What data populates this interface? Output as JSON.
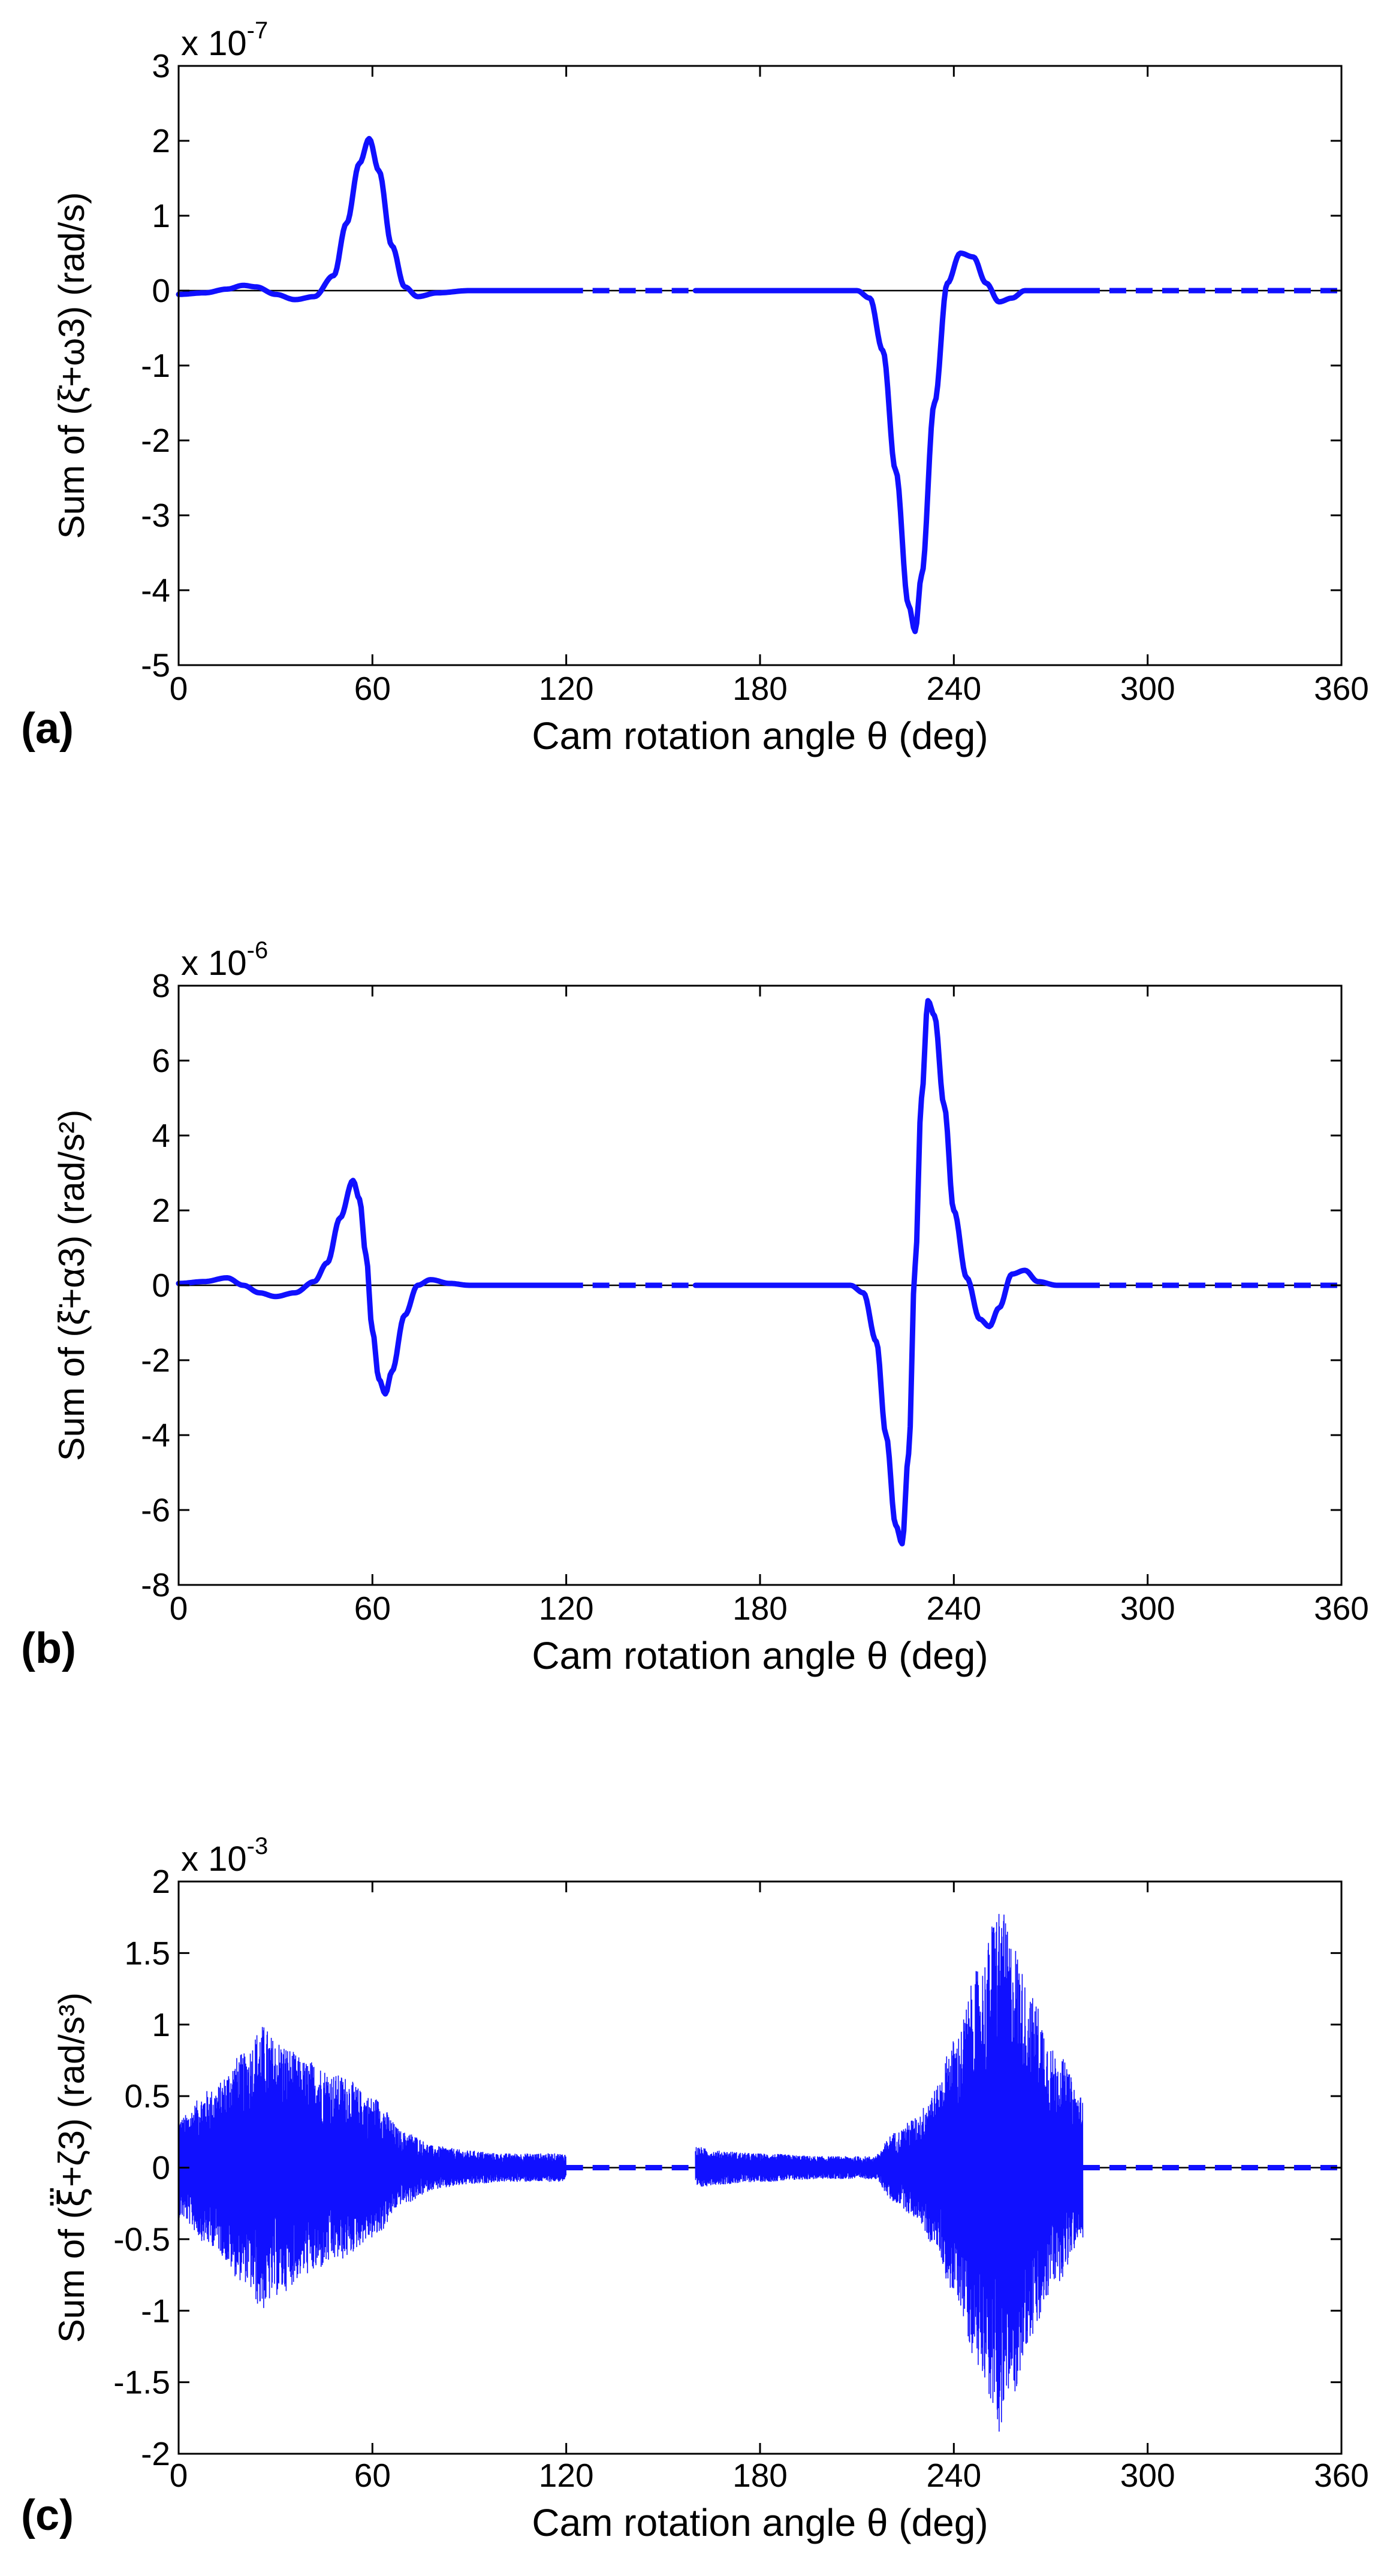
{
  "chart_data": [
    {
      "panel": "(a)",
      "type": "line",
      "xlabel": "Cam rotation angle θ (deg)",
      "ylabel": "Sum of (ξ̇+ω3) (rad/s)",
      "exponent_label": "x 10",
      "exponent_power": "-7",
      "xlim": [
        0,
        360
      ],
      "ylim": [
        -5,
        3
      ],
      "xticks": [
        "0",
        "60",
        "120",
        "180",
        "240",
        "300",
        "360"
      ],
      "yticks": [
        "-5",
        "-4",
        "-3",
        "-2",
        "-1",
        "0",
        "1",
        "2",
        "3"
      ],
      "line_color": "#1010ff",
      "series": [
        {
          "name": "solid",
          "x": [
            0,
            8,
            15,
            20,
            24,
            30,
            36,
            42,
            48,
            52,
            56,
            59,
            62,
            66,
            70,
            74,
            80,
            90,
            100,
            110,
            120
          ],
          "y": [
            -0.05,
            -0.03,
            0.02,
            0.07,
            0.05,
            -0.05,
            -0.12,
            -0.08,
            0.2,
            0.9,
            1.7,
            2.03,
            1.6,
            0.6,
            0.05,
            -0.08,
            -0.03,
            0.0,
            0.0,
            0.0,
            0.0
          ]
        },
        {
          "name": "dashed",
          "x": [
            120,
            160
          ],
          "y": [
            0,
            0
          ]
        },
        {
          "name": "solid",
          "x": [
            160,
            180,
            200,
            210,
            214,
            218,
            222,
            226,
            228,
            230,
            234,
            238,
            242,
            246,
            250,
            254,
            258,
            262,
            270,
            280
          ],
          "y": [
            0.0,
            0.0,
            0.0,
            0.0,
            -0.1,
            -0.8,
            -2.4,
            -4.2,
            -4.55,
            -3.8,
            -1.5,
            0.1,
            0.5,
            0.45,
            0.1,
            -0.15,
            -0.1,
            0.0,
            0.0,
            0.0
          ]
        },
        {
          "name": "dashed",
          "x": [
            280,
            360
          ],
          "y": [
            0,
            0
          ]
        }
      ]
    },
    {
      "panel": "(b)",
      "type": "line",
      "xlabel": "Cam rotation angle θ (deg)",
      "ylabel": "Sum of (ξ̈+α3) (rad/s²)",
      "exponent_label": "x 10",
      "exponent_power": "-6",
      "xlim": [
        0,
        360
      ],
      "ylim": [
        -8,
        8
      ],
      "xticks": [
        "0",
        "60",
        "120",
        "180",
        "240",
        "300",
        "360"
      ],
      "yticks": [
        "-8",
        "-6",
        "-4",
        "-2",
        "0",
        "2",
        "4",
        "6",
        "8"
      ],
      "line_color": "#1010ff",
      "series": [
        {
          "name": "solid",
          "x": [
            0,
            8,
            15,
            20,
            25,
            30,
            36,
            42,
            46,
            50,
            54,
            56,
            58,
            60,
            62,
            64,
            66,
            70,
            74,
            78,
            84,
            90,
            100,
            110,
            120
          ],
          "y": [
            0.05,
            0.1,
            0.2,
            0.0,
            -0.2,
            -0.3,
            -0.2,
            0.1,
            0.6,
            1.8,
            2.8,
            2.3,
            0.8,
            -1.2,
            -2.5,
            -2.9,
            -2.3,
            -0.8,
            0.0,
            0.15,
            0.05,
            0.0,
            0.0,
            0.0,
            0.0
          ]
        },
        {
          "name": "dashed",
          "x": [
            120,
            160
          ],
          "y": [
            0,
            0
          ]
        },
        {
          "name": "solid",
          "x": [
            160,
            180,
            200,
            208,
            212,
            216,
            219,
            222,
            224,
            226,
            228,
            230,
            232,
            234,
            237,
            240,
            244,
            248,
            251,
            254,
            258,
            262,
            266,
            272,
            280
          ],
          "y": [
            0.0,
            0.0,
            0.0,
            0.0,
            -0.2,
            -1.5,
            -4.0,
            -6.4,
            -6.9,
            -4.5,
            0.5,
            5.0,
            7.6,
            7.2,
            4.8,
            2.0,
            0.2,
            -0.9,
            -1.1,
            -0.6,
            0.3,
            0.4,
            0.1,
            0.0,
            0.0
          ]
        },
        {
          "name": "dashed",
          "x": [
            280,
            360
          ],
          "y": [
            0,
            0
          ]
        }
      ]
    },
    {
      "panel": "(c)",
      "type": "line",
      "xlabel": "Cam rotation angle θ (deg)",
      "ylabel": "Sum of (ξ⃛+ζ3) (rad/s³)",
      "exponent_label": "x 10",
      "exponent_power": "-3",
      "xlim": [
        0,
        360
      ],
      "ylim": [
        -2,
        2
      ],
      "xticks": [
        "0",
        "60",
        "120",
        "180",
        "240",
        "300",
        "360"
      ],
      "yticks": [
        "-2",
        "-1.5",
        "-1",
        "-0.5",
        "0",
        "0.5",
        "1",
        "1.5",
        "2"
      ],
      "line_color": "#1010ff",
      "series": [
        {
          "name": "noise-envelope-segment-1",
          "x": [
            0,
            10,
            20,
            26,
            30,
            40,
            50,
            60,
            70,
            80,
            90,
            100,
            110,
            120
          ],
          "amplitude": [
            0.35,
            0.55,
            0.8,
            1.0,
            0.9,
            0.75,
            0.65,
            0.5,
            0.25,
            0.15,
            0.12,
            0.1,
            0.1,
            0.1
          ]
        },
        {
          "name": "dashed",
          "x": [
            120,
            160
          ],
          "y": [
            0,
            0
          ]
        },
        {
          "name": "noise-envelope-segment-2",
          "x": [
            160,
            166,
            180,
            200,
            215,
            222,
            228,
            234,
            240,
            248,
            254,
            258,
            264,
            272,
            280
          ],
          "amplitude": [
            0.15,
            0.12,
            0.1,
            0.08,
            0.08,
            0.25,
            0.35,
            0.55,
            0.9,
            1.4,
            1.85,
            1.6,
            1.2,
            0.8,
            0.5
          ]
        },
        {
          "name": "dashed",
          "x": [
            280,
            360
          ],
          "y": [
            0,
            0
          ]
        }
      ]
    }
  ]
}
